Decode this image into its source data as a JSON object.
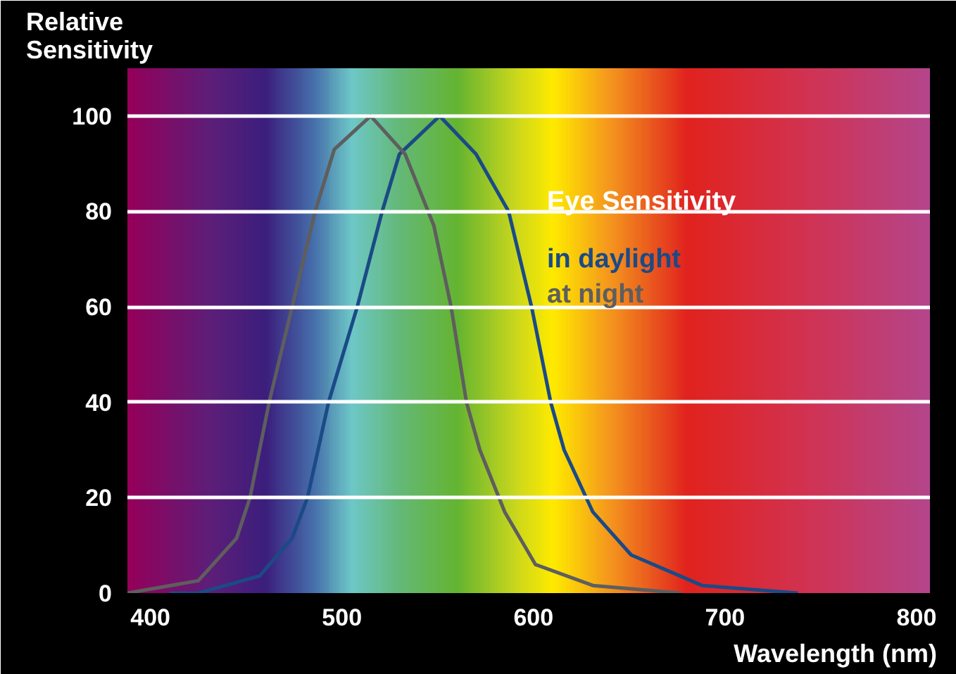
{
  "chart_data": {
    "type": "line",
    "ylabel": "Relative Sensitivity",
    "xlabel": "Wavelength (nm)",
    "legend_title": "Eye Sensitivity",
    "legend": "top right",
    "grid": "y",
    "xlim": [
      388,
      807
    ],
    "xticks": [
      400,
      500,
      600,
      700,
      800
    ],
    "ylim": [
      0,
      110
    ],
    "yticks": [
      0,
      20,
      40,
      60,
      80,
      100
    ],
    "series": [
      {
        "name": "in daylight",
        "color": "#1b4a86",
        "x": [
          410,
          425,
          457,
          474,
          482,
          493,
          508,
          521,
          530,
          551,
          570,
          587,
          599,
          609,
          616,
          631,
          651,
          688,
          738
        ],
        "values": [
          0,
          0,
          3.6,
          11.5,
          20,
          40,
          60,
          80,
          92,
          100,
          92,
          80,
          60,
          40,
          30,
          17,
          8,
          1.6,
          0
        ]
      },
      {
        "name": "at night",
        "color": "#5e5e5e",
        "x": [
          388,
          425,
          445,
          452,
          462,
          474,
          486,
          496,
          515,
          533,
          548,
          557,
          565,
          572,
          585,
          601,
          631,
          677
        ],
        "values": [
          0,
          2.6,
          11.5,
          20,
          40,
          60,
          80,
          93,
          100,
          92,
          77,
          60,
          40,
          30,
          17,
          6,
          1.6,
          0
        ]
      }
    ]
  }
}
